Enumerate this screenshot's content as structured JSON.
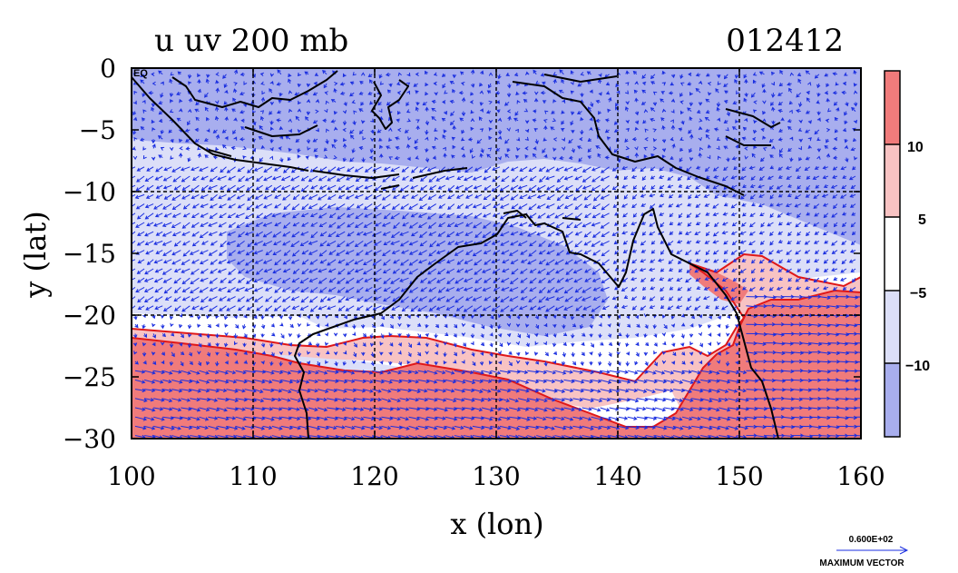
{
  "map": {
    "title_left": "u uv 200 mb",
    "title_right": "012412",
    "xlabel": "x (lon)",
    "ylabel": "y (lat)",
    "x_ticks": [
      "100",
      "110",
      "120",
      "130",
      "140",
      "150",
      "160"
    ],
    "y_ticks": [
      "0",
      "−5",
      "−10",
      "−15",
      "−20",
      "−25",
      "−30"
    ],
    "y_corner_label": "EQ",
    "lon_range": [
      100,
      160
    ],
    "lat_range": [
      -30,
      0
    ],
    "grid": "dashed every 10 degrees",
    "colorbar": {
      "tick_labels": [
        "10",
        "5",
        "−5",
        "−10"
      ],
      "colors": [
        "#f07b7b",
        "#f8c3c3",
        "#ffffff",
        "#dcdff8",
        "#a8aeee"
      ],
      "levels": [
        -10,
        -5,
        5,
        10
      ]
    },
    "vector_key": {
      "value": "0.600E+02",
      "label": "MAXIMUM VECTOR"
    },
    "colors": {
      "vector": "#1a2ee0",
      "coast": "#000000",
      "contour": "#e01818",
      "grid": "#000000"
    }
  }
}
